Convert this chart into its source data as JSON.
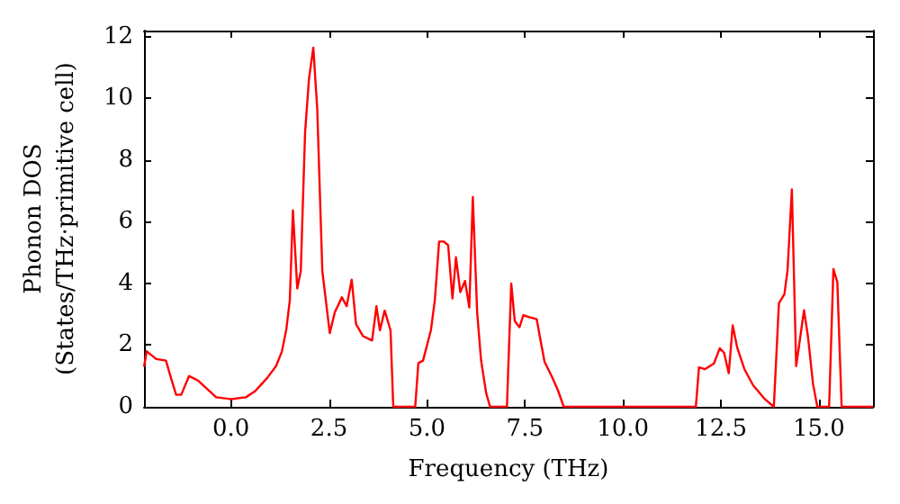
{
  "chart_data": {
    "type": "line",
    "xlabel": "Frequency (THz)",
    "ylabel": "Phonon DOS\n(States/THz·primitive cell)",
    "xlim": [
      -2.22,
      16.38
    ],
    "ylim": [
      0,
      12.2
    ],
    "xticks": [
      {
        "value": 0,
        "label": "0.0"
      },
      {
        "value": 2.5,
        "label": "2.5"
      },
      {
        "value": 5,
        "label": "5.0"
      },
      {
        "value": 7.5,
        "label": "7.5"
      },
      {
        "value": 10,
        "label": "10.0"
      },
      {
        "value": 12.5,
        "label": "12.5"
      },
      {
        "value": 15,
        "label": "15.0"
      }
    ],
    "yticks": [
      0,
      2,
      4,
      6,
      8,
      10,
      12
    ],
    "marker": "none",
    "line_style": "solid",
    "series": [
      {
        "color": "#ff0000",
        "x": [
          -2.22,
          -2.15,
          -1.91,
          -1.66,
          -1.53,
          -1.4,
          -1.27,
          -1.07,
          -0.84,
          -0.61,
          -0.38,
          0.0,
          0.38,
          0.61,
          0.92,
          1.15,
          1.3,
          1.41,
          1.5,
          1.58,
          1.69,
          1.78,
          1.89,
          1.99,
          2.1,
          2.2,
          2.33,
          2.52,
          2.65,
          2.83,
          2.95,
          3.08,
          3.19,
          3.37,
          3.6,
          3.71,
          3.8,
          3.92,
          4.07,
          4.14,
          4.7,
          4.78,
          4.9,
          5.1,
          5.2,
          5.31,
          5.43,
          5.54,
          5.65,
          5.74,
          5.85,
          5.97,
          6.08,
          6.17,
          6.28,
          6.38,
          6.51,
          6.61,
          7.04,
          7.15,
          7.24,
          7.36,
          7.46,
          7.61,
          7.8,
          7.92,
          8.0,
          8.19,
          8.34,
          8.49,
          11.86,
          11.94,
          12.09,
          12.32,
          12.47,
          12.58,
          12.7,
          12.8,
          12.92,
          13.1,
          13.32,
          13.62,
          13.85,
          13.98,
          14.12,
          14.2,
          14.31,
          14.42,
          14.62,
          14.72,
          14.85,
          14.96,
          15.26,
          15.37,
          15.47,
          15.58,
          16.38
        ],
        "values": [
          1.3,
          1.8,
          1.55,
          1.5,
          0.93,
          0.39,
          0.39,
          1.0,
          0.85,
          0.58,
          0.31,
          0.25,
          0.31,
          0.5,
          0.93,
          1.32,
          1.8,
          2.5,
          3.45,
          6.37,
          3.84,
          4.4,
          8.9,
          10.64,
          11.65,
          9.67,
          4.4,
          2.39,
          3.07,
          3.55,
          3.26,
          4.12,
          2.68,
          2.29,
          2.15,
          3.26,
          2.48,
          3.12,
          2.48,
          0,
          0,
          1.42,
          1.5,
          2.48,
          3.45,
          5.36,
          5.36,
          5.24,
          3.51,
          4.85,
          3.72,
          4.08,
          3.22,
          6.8,
          3.07,
          1.51,
          0.45,
          0,
          0,
          4.0,
          2.78,
          2.58,
          2.97,
          2.91,
          2.84,
          2.0,
          1.46,
          0.97,
          0.54,
          0,
          0,
          1.28,
          1.22,
          1.4,
          1.9,
          1.75,
          1.09,
          2.64,
          1.9,
          1.22,
          0.7,
          0.25,
          0,
          3.36,
          3.65,
          4.43,
          7.05,
          1.32,
          3.13,
          2.29,
          0.74,
          0,
          0,
          4.47,
          4.04,
          0,
          0
        ]
      }
    ]
  }
}
